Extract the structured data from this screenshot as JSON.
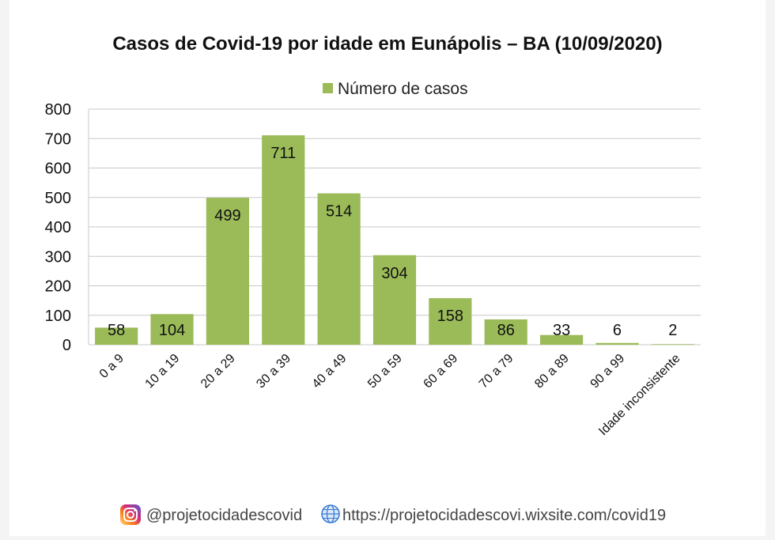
{
  "chart_data": {
    "type": "bar",
    "title": "Casos de Covid-19 por idade em Eunápolis – BA (10/09/2020)",
    "series": [
      {
        "name": "Número de casos",
        "color": "#9bbb59",
        "values": [
          58,
          104,
          499,
          711,
          514,
          304,
          158,
          86,
          33,
          6,
          2
        ]
      }
    ],
    "categories": [
      "0 a 9",
      "10 a 19",
      "20 a 29",
      "30 a 39",
      "40 a 49",
      "50 a 59",
      "60 a 69",
      "70 a 79",
      "80 a 89",
      "90 a 99",
      "Idade inconsistente"
    ],
    "data_labels": [
      "58",
      "104",
      "499",
      "711",
      "514",
      "304",
      "158",
      "86",
      "33",
      "6",
      "2"
    ],
    "ylim": [
      0,
      800
    ],
    "yticks": [
      "0",
      "100",
      "200",
      "300",
      "400",
      "500",
      "600",
      "700",
      "800"
    ],
    "grid": true,
    "legend_position": "top"
  },
  "footer": {
    "instagram": "@projetocidadescovid",
    "website": "https://projetocidadescovi.wixsite.com/covid19",
    "instagram_icon": "instagram-icon",
    "globe_icon": "globe-icon"
  }
}
